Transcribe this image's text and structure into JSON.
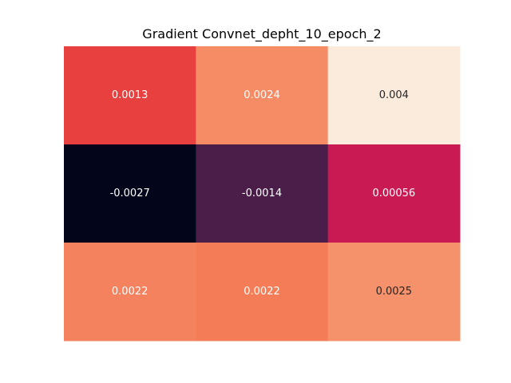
{
  "chart_data": {
    "type": "heatmap",
    "title": "Gradient Convnet_depht_10_epoch_2",
    "rows": 3,
    "cols": 3,
    "values": [
      [
        0.0013,
        0.0024,
        0.004
      ],
      [
        -0.0027,
        -0.0014,
        0.00056
      ],
      [
        0.0022,
        0.0022,
        0.0025
      ]
    ],
    "labels": [
      [
        "0.0013",
        "0.0024",
        "0.004"
      ],
      [
        "-0.0027",
        "-0.0014",
        "0.00056"
      ],
      [
        "0.0022",
        "0.0022",
        "0.0025"
      ]
    ],
    "colors": [
      [
        "#e83f3f",
        "#f58c65",
        "#faebdd"
      ],
      [
        "#03051a",
        "#4a1e48",
        "#c91a53"
      ],
      [
        "#f4825f",
        "#f47c57",
        "#f5916b"
      ]
    ],
    "label_colors": [
      [
        "#ffffff",
        "#ffffff",
        "#262626"
      ],
      [
        "#ffffff",
        "#ffffff",
        "#ffffff"
      ],
      [
        "#ffffff",
        "#ffffff",
        "#262626"
      ]
    ],
    "colorbar": false,
    "axis_ticks": false
  }
}
